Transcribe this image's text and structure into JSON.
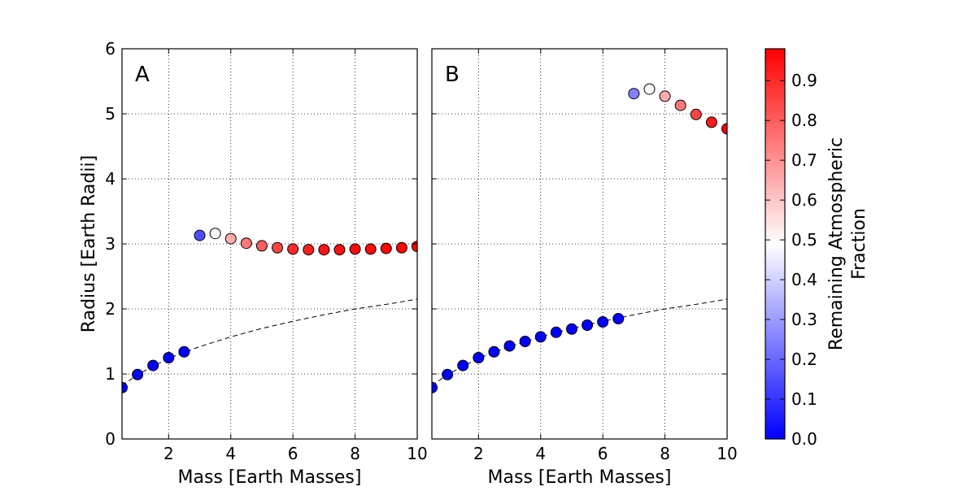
{
  "chart_data": [
    {
      "type": "scatter",
      "panel_label": "A",
      "xlabel": "Mass [Earth Masses]",
      "ylabel": "Radius [Earth Radii]",
      "xlim": [
        0.5,
        10
      ],
      "ylim": [
        0,
        6
      ],
      "xticks": [
        2,
        4,
        6,
        8,
        10
      ],
      "yticks": [
        0,
        1,
        2,
        3,
        4,
        5,
        6
      ],
      "grid": true,
      "points": [
        {
          "x": 0.5,
          "y": 0.79,
          "c": 0.0
        },
        {
          "x": 1.0,
          "y": 0.99,
          "c": 0.0
        },
        {
          "x": 1.5,
          "y": 1.13,
          "c": 0.0
        },
        {
          "x": 2.0,
          "y": 1.25,
          "c": 0.0
        },
        {
          "x": 2.5,
          "y": 1.34,
          "c": 0.0
        },
        {
          "x": 3.0,
          "y": 3.13,
          "c": 0.15
        },
        {
          "x": 3.5,
          "y": 3.16,
          "c": 0.5
        },
        {
          "x": 4.0,
          "y": 3.08,
          "c": 0.65
        },
        {
          "x": 4.5,
          "y": 3.01,
          "c": 0.75
        },
        {
          "x": 5.0,
          "y": 2.97,
          "c": 0.8
        },
        {
          "x": 5.5,
          "y": 2.94,
          "c": 0.85
        },
        {
          "x": 6.0,
          "y": 2.92,
          "c": 0.9
        },
        {
          "x": 6.5,
          "y": 2.91,
          "c": 0.92
        },
        {
          "x": 7.0,
          "y": 2.91,
          "c": 0.94
        },
        {
          "x": 7.5,
          "y": 2.91,
          "c": 0.95
        },
        {
          "x": 8.0,
          "y": 2.92,
          "c": 0.96
        },
        {
          "x": 8.5,
          "y": 2.92,
          "c": 0.96
        },
        {
          "x": 9.0,
          "y": 2.93,
          "c": 0.97
        },
        {
          "x": 9.5,
          "y": 2.94,
          "c": 0.97
        },
        {
          "x": 10.0,
          "y": 2.96,
          "c": 0.98
        }
      ],
      "reference_curve": {
        "style": "dashed",
        "x": [
          0.5,
          1,
          2,
          3,
          4,
          5,
          6,
          7,
          8,
          9,
          10
        ],
        "y": [
          0.82,
          0.99,
          1.24,
          1.42,
          1.57,
          1.7,
          1.81,
          1.91,
          2.0,
          2.07,
          2.15
        ]
      }
    },
    {
      "type": "scatter",
      "panel_label": "B",
      "xlabel": "Mass [Earth Masses]",
      "xlim": [
        0.5,
        10
      ],
      "ylim": [
        0,
        6
      ],
      "xticks": [
        2,
        4,
        6,
        8,
        10
      ],
      "grid": true,
      "points": [
        {
          "x": 0.5,
          "y": 0.79,
          "c": 0.0
        },
        {
          "x": 1.0,
          "y": 0.99,
          "c": 0.0
        },
        {
          "x": 1.5,
          "y": 1.13,
          "c": 0.0
        },
        {
          "x": 2.0,
          "y": 1.25,
          "c": 0.0
        },
        {
          "x": 2.5,
          "y": 1.34,
          "c": 0.0
        },
        {
          "x": 3.0,
          "y": 1.43,
          "c": 0.0
        },
        {
          "x": 3.5,
          "y": 1.5,
          "c": 0.0
        },
        {
          "x": 4.0,
          "y": 1.57,
          "c": 0.0
        },
        {
          "x": 4.5,
          "y": 1.64,
          "c": 0.0
        },
        {
          "x": 5.0,
          "y": 1.69,
          "c": 0.0
        },
        {
          "x": 5.5,
          "y": 1.75,
          "c": 0.0
        },
        {
          "x": 6.0,
          "y": 1.8,
          "c": 0.0
        },
        {
          "x": 6.5,
          "y": 1.85,
          "c": 0.0
        },
        {
          "x": 7.0,
          "y": 5.31,
          "c": 0.25
        },
        {
          "x": 7.5,
          "y": 5.38,
          "c": 0.5
        },
        {
          "x": 8.0,
          "y": 5.27,
          "c": 0.65
        },
        {
          "x": 8.5,
          "y": 5.13,
          "c": 0.75
        },
        {
          "x": 9.0,
          "y": 4.99,
          "c": 0.85
        },
        {
          "x": 9.5,
          "y": 4.87,
          "c": 0.93
        },
        {
          "x": 10.0,
          "y": 4.77,
          "c": 0.98
        }
      ],
      "reference_curve": {
        "style": "dashed",
        "x": [
          0.5,
          1,
          2,
          3,
          4,
          5,
          6,
          7,
          8,
          9,
          10
        ],
        "y": [
          0.82,
          0.99,
          1.24,
          1.42,
          1.57,
          1.7,
          1.81,
          1.91,
          2.0,
          2.07,
          2.15
        ]
      }
    }
  ],
  "colorbar": {
    "label_lines": [
      "Remaining Atmospheric",
      "Fraction"
    ],
    "range": [
      0.0,
      0.98
    ],
    "ticks": [
      0.0,
      0.1,
      0.2,
      0.3,
      0.4,
      0.5,
      0.6,
      0.7,
      0.8,
      0.9
    ],
    "tick_labels": [
      "0.0",
      "0.1",
      "0.2",
      "0.3",
      "0.4",
      "0.5",
      "0.6",
      "0.7",
      "0.8",
      "0.9"
    ],
    "colormap": [
      "#0000ff",
      "#ffffff",
      "#ff0000"
    ]
  }
}
